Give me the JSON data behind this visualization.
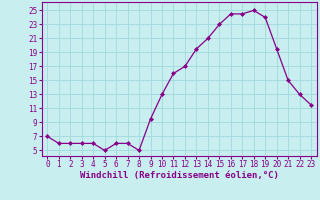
{
  "x": [
    0,
    1,
    2,
    3,
    4,
    5,
    6,
    7,
    8,
    9,
    10,
    11,
    12,
    13,
    14,
    15,
    16,
    17,
    18,
    19,
    20,
    21,
    22,
    23
  ],
  "y": [
    7,
    6,
    6,
    6,
    6,
    5,
    6,
    6,
    5,
    9.5,
    13,
    16,
    17,
    19.5,
    21,
    23,
    24.5,
    24.5,
    25,
    24,
    19.5,
    15,
    13,
    11.5
  ],
  "line_color": "#880088",
  "marker": "D",
  "marker_size": 2.0,
  "bg_color": "#c8eef0",
  "grid_color": "#a0d8dc",
  "xlabel": "Windchill (Refroidissement éolien,°C)",
  "xlabel_fontsize": 6.5,
  "ylabel_ticks": [
    5,
    7,
    9,
    11,
    13,
    15,
    17,
    19,
    21,
    23,
    25
  ],
  "ylim": [
    4.2,
    26.2
  ],
  "xlim": [
    -0.5,
    23.5
  ],
  "xticks": [
    0,
    1,
    2,
    3,
    4,
    5,
    6,
    7,
    8,
    9,
    10,
    11,
    12,
    13,
    14,
    15,
    16,
    17,
    18,
    19,
    20,
    21,
    22,
    23
  ],
  "tick_fontsize": 5.5,
  "axis_color": "#880088"
}
